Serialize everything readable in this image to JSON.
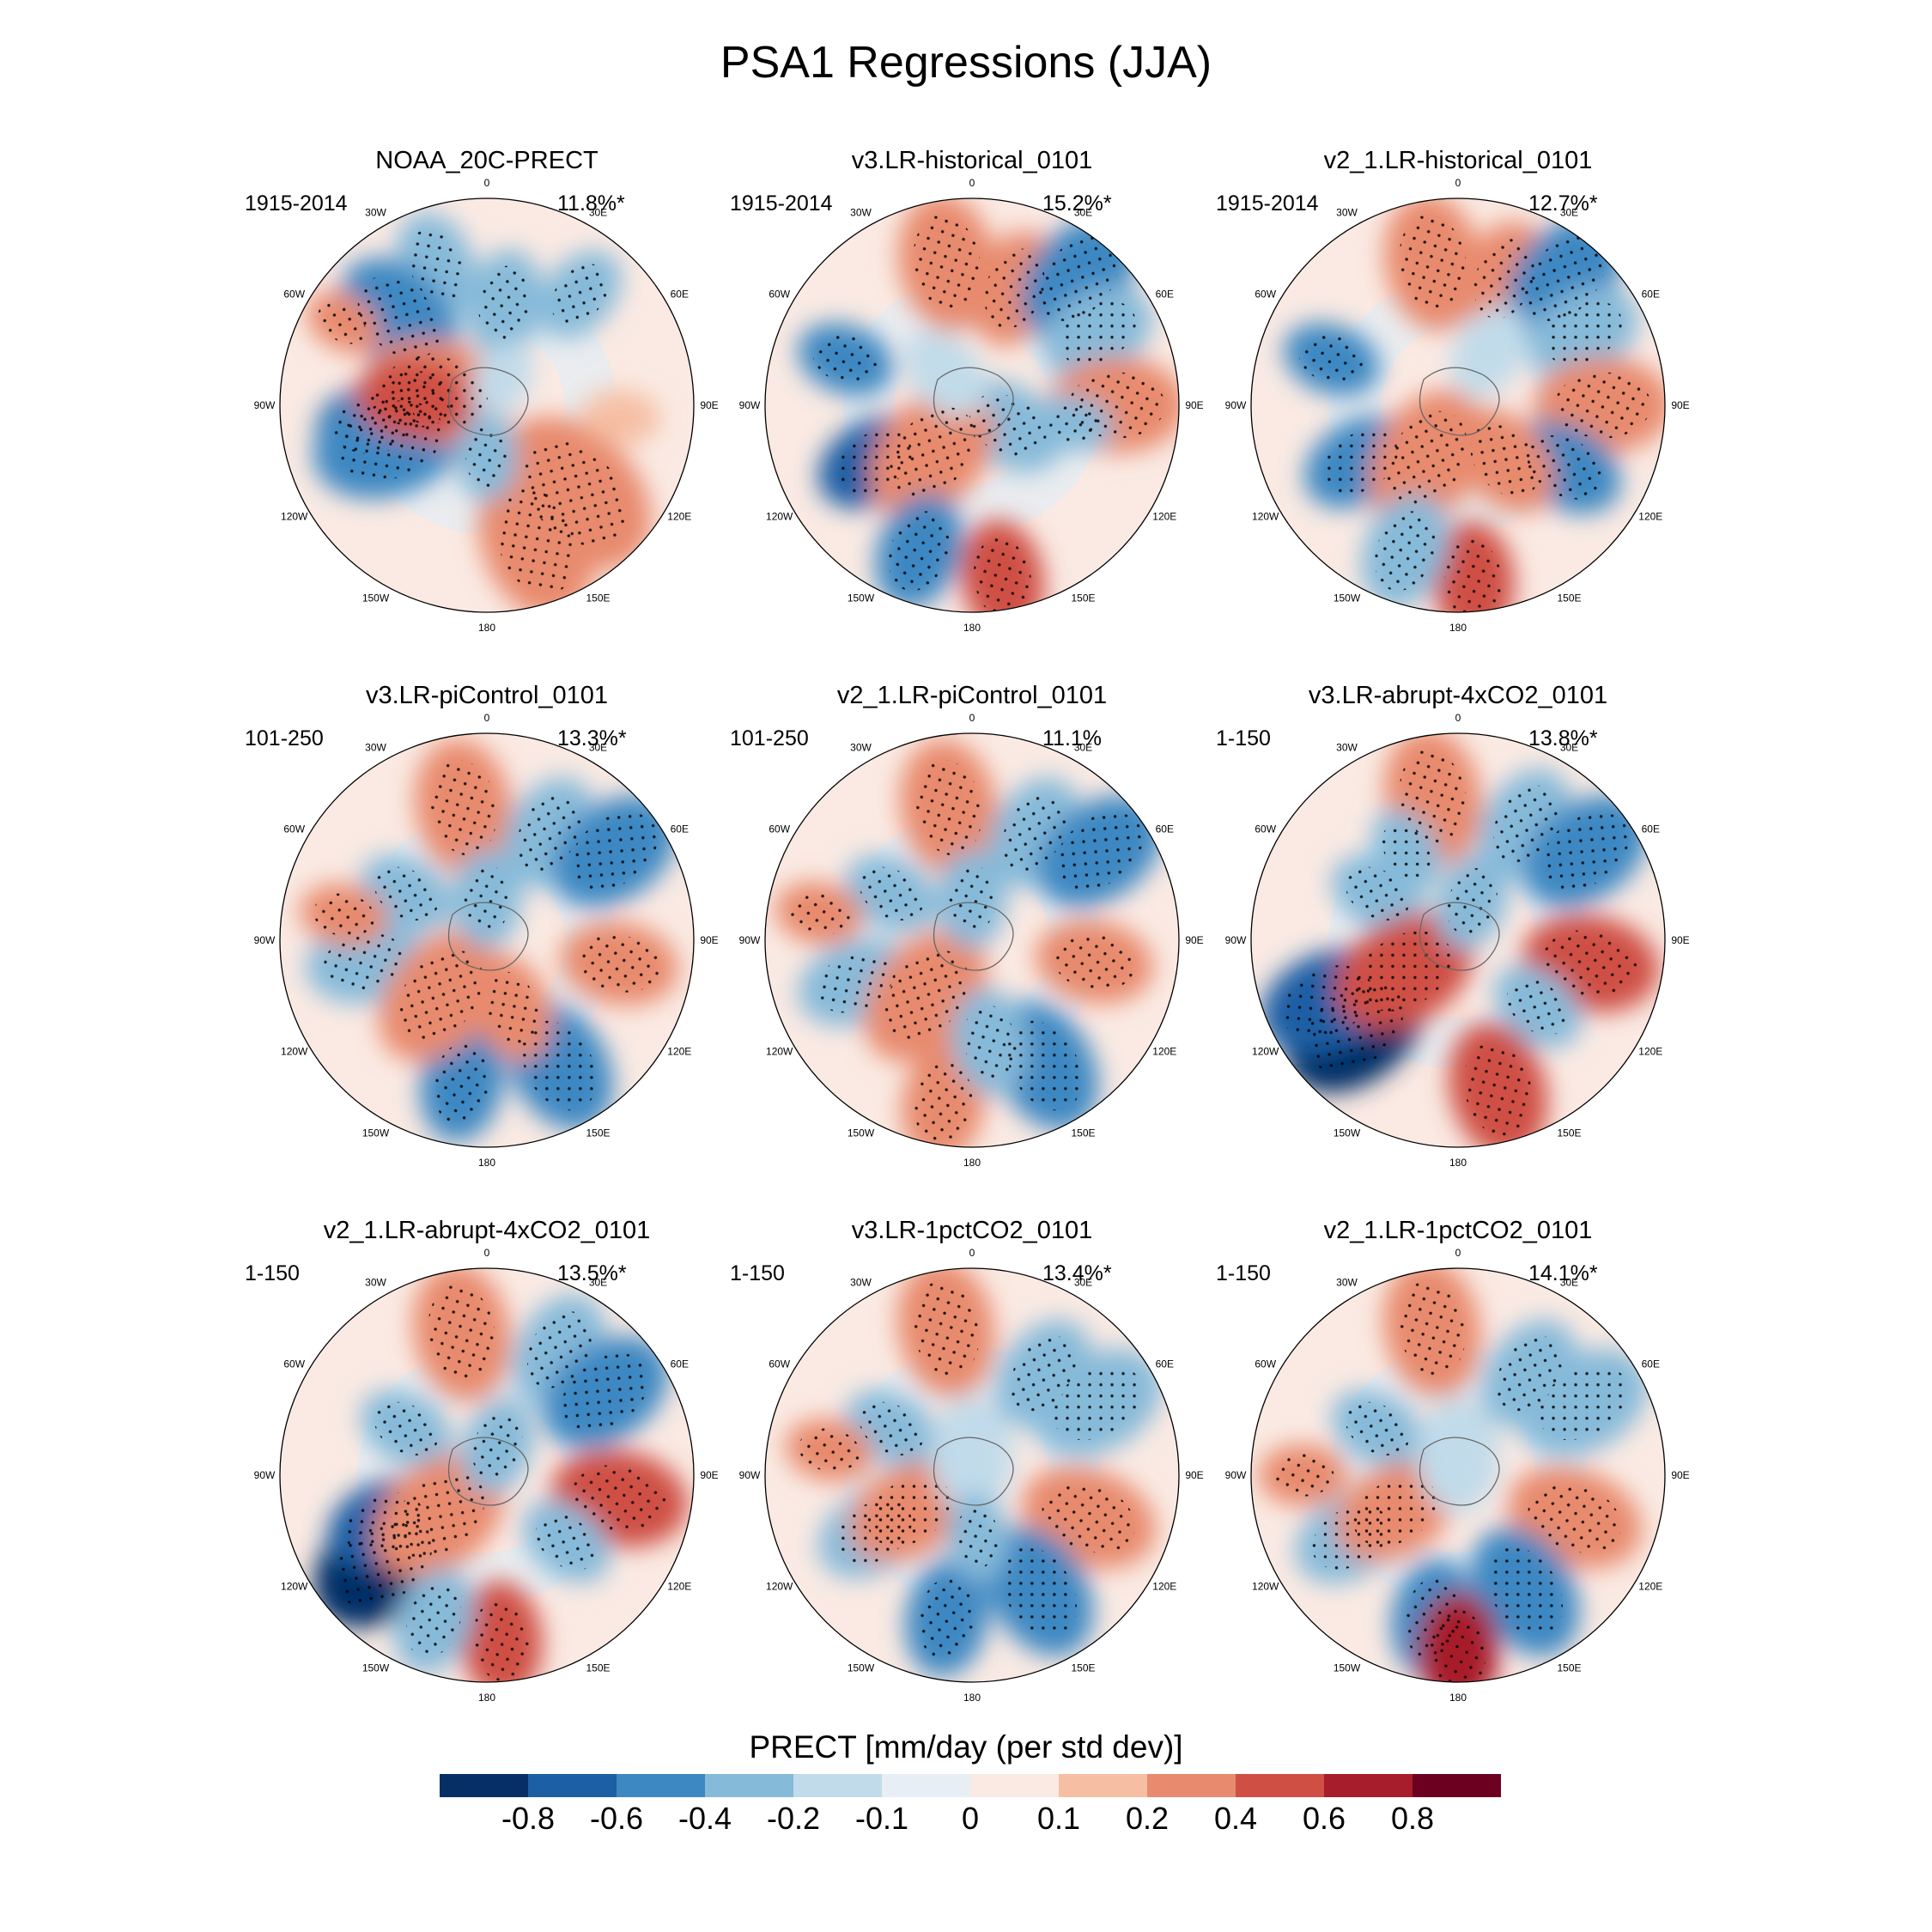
{
  "title": "PSA1 Regressions (JJA)",
  "longitude_labels": [
    "0",
    "30E",
    "60E",
    "90E",
    "120E",
    "150E",
    "180",
    "150W",
    "120W",
    "90W",
    "60W",
    "30W"
  ],
  "panels": [
    {
      "title": "NOAA_20C-PRECT",
      "period": "1915-2014",
      "pct": "11.8%*"
    },
    {
      "title": "v3.LR-historical_0101",
      "period": "1915-2014",
      "pct": "15.2%*"
    },
    {
      "title": "v2_1.LR-historical_0101",
      "period": "1915-2014",
      "pct": "12.7%*"
    },
    {
      "title": "v3.LR-piControl_0101",
      "period": "101-250",
      "pct": "13.3%*"
    },
    {
      "title": "v2_1.LR-piControl_0101",
      "period": "101-250",
      "pct": "11.1%"
    },
    {
      "title": "v3.LR-abrupt-4xCO2_0101",
      "period": "1-150",
      "pct": "13.8%*"
    },
    {
      "title": "v2_1.LR-abrupt-4xCO2_0101",
      "period": "1-150",
      "pct": "13.5%*"
    },
    {
      "title": "v3.LR-1pctCO2_0101",
      "period": "1-150",
      "pct": "13.4%*"
    },
    {
      "title": "v2_1.LR-1pctCO2_0101",
      "period": "1-150",
      "pct": "14.1%*"
    }
  ],
  "colorbar": {
    "title": "PRECT [mm/day (per std dev)]",
    "ticks": [
      "-0.8",
      "-0.6",
      "-0.4",
      "-0.2",
      "-0.1",
      "0",
      "0.1",
      "0.2",
      "0.4",
      "0.6",
      "0.8"
    ],
    "colors": [
      "#062f66",
      "#1d5fa5",
      "#3d88c2",
      "#86bad9",
      "#c1dbea",
      "#e8eff4",
      "#faeae3",
      "#f6bfa4",
      "#e88a6d",
      "#cf4f44",
      "#a81d2c",
      "#6b0020"
    ]
  }
}
